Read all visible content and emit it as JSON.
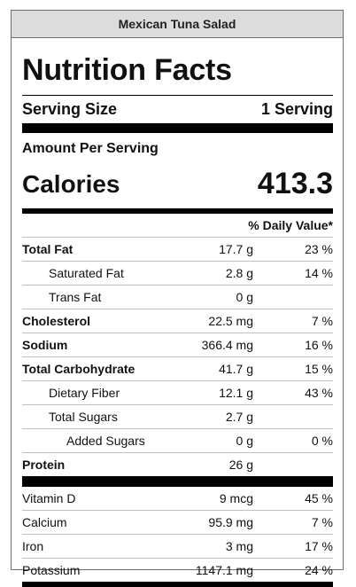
{
  "recipe_name": "Mexican Tuna Salad",
  "heading": "Nutrition Facts",
  "serving_size_label": "Serving Size",
  "serving_size_value": "1 Serving",
  "amount_per_serving": "Amount Per Serving",
  "calories_label": "Calories",
  "calories_value": "413.3",
  "daily_value_header": "% Daily Value*",
  "nutrients": [
    {
      "name": "Total Fat",
      "amount": "17.7 g",
      "pct": "23 %"
    },
    {
      "name": "Saturated Fat",
      "amount": "2.8 g",
      "pct": "14 %"
    },
    {
      "name": "Trans Fat",
      "amount": "0 g",
      "pct": ""
    },
    {
      "name": "Cholesterol",
      "amount": "22.5 mg",
      "pct": "7 %"
    },
    {
      "name": "Sodium",
      "amount": "366.4 mg",
      "pct": "16 %"
    },
    {
      "name": "Total Carbohydrate",
      "amount": "41.7 g",
      "pct": "15 %"
    },
    {
      "name": "Dietary Fiber",
      "amount": "12.1 g",
      "pct": "43 %"
    },
    {
      "name": "Total Sugars",
      "amount": "2.7 g",
      "pct": ""
    },
    {
      "name": "Added Sugars",
      "amount": "0 g",
      "pct": "0 %"
    },
    {
      "name": "Protein",
      "amount": "26 g",
      "pct": ""
    }
  ],
  "vitamins": [
    {
      "name": "Vitamin D",
      "amount": "9 mcg",
      "pct": "45 %"
    },
    {
      "name": "Calcium",
      "amount": "95.9 mg",
      "pct": "7 %"
    },
    {
      "name": "Iron",
      "amount": "3 mg",
      "pct": "17 %"
    },
    {
      "name": "Potassium",
      "amount": "1147.1 mg",
      "pct": "24 %"
    }
  ]
}
